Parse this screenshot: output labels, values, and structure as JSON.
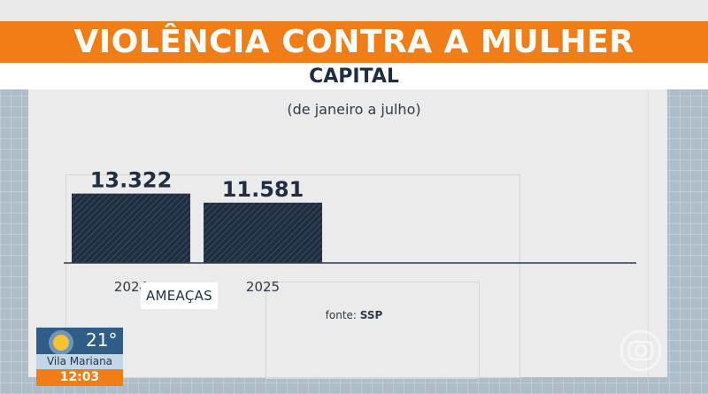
{
  "header": {
    "title": "VIOLÊNCIA CONTRA A MULHER",
    "subtitle": "CAPITAL"
  },
  "chart_data": {
    "type": "bar",
    "note": "(de janeiro a julho)",
    "categories": [
      "2024",
      "2025"
    ],
    "values": [
      13322,
      11581
    ],
    "value_labels": [
      "13.322",
      "11.581"
    ],
    "metric_label": "AMEAÇAS",
    "source_prefix": "fonte:",
    "source_name": "SSP",
    "bar_color": "#1f2e40",
    "ylim": [
      0,
      17000
    ]
  },
  "weather": {
    "icon": "sun-icon",
    "temperature": "21°",
    "location": "Vila Mariana",
    "time": "12:03"
  },
  "broadcaster": {
    "icon": "tv-globo-watermark-icon"
  },
  "colors": {
    "accent": "#f07d16",
    "background": "#aebdca",
    "panel": "#ebebeb",
    "dark": "#1f2e40"
  }
}
